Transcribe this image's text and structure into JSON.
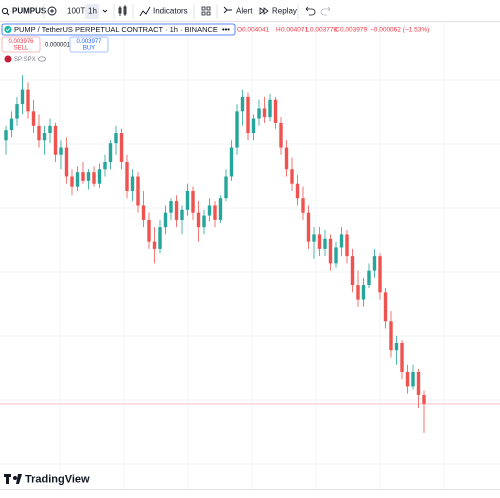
{
  "toolbar": {
    "symbol": "PUMPUS",
    "quantity": "100T",
    "interval": "1h",
    "indicators": "Indicators",
    "alert": "Alert",
    "replay": "Replay"
  },
  "legend": {
    "title": "PUMP / TetherUS PERPETUAL CONTRACT · 1h · BINANCE",
    "o_label": "O",
    "o": "0.004041",
    "h_label": "H",
    "h": "0.004071",
    "l_label": "L",
    "l": "0.003778",
    "c_label": "C",
    "c": "0.003979",
    "change": "−0.000062 (−1.53%)",
    "sell_price": "0.003976",
    "sell": "SELL",
    "spread": "0.000001",
    "buy_price": "0.003977",
    "buy": "BUY",
    "compare": "SP:SPX"
  },
  "footer": {
    "brand": "TradingView"
  },
  "chart_data": {
    "type": "candlestick",
    "up_color": "#26a69a",
    "down_color": "#ef5350",
    "price_line_color": "#f7b9be",
    "ylim": [
      0.00373,
      0.00632
    ],
    "open": [
      0.0058,
      0.00587,
      0.00595,
      0.00605,
      0.00615,
      0.006,
      0.0059,
      0.0058,
      0.00585,
      0.0059,
      0.0057,
      0.00575,
      0.00555,
      0.00548,
      0.00558,
      0.00552,
      0.00558,
      0.0055,
      0.0056,
      0.00565,
      0.00578,
      0.00585,
      0.00565,
      0.00545,
      0.00555,
      0.00535,
      0.00525,
      0.0051,
      0.00505,
      0.0052,
      0.0053,
      0.00538,
      0.00525,
      0.00532,
      0.00545,
      0.0053,
      0.0052,
      0.00528,
      0.00535,
      0.00525,
      0.0054,
      0.00555,
      0.00575,
      0.006,
      0.0061,
      0.00585,
      0.00595,
      0.00602,
      0.00596,
      0.00608,
      0.00592,
      0.00575,
      0.0056,
      0.0055,
      0.0054,
      0.0053,
      0.0051,
      0.00515,
      0.00505,
      0.00512,
      0.00495,
      0.00506,
      0.00515,
      0.005,
      0.0048,
      0.0047,
      0.0048,
      0.0049,
      0.005,
      0.00475,
      0.00455,
      0.00435,
      0.0044,
      0.0042,
      0.0041,
      0.0042,
      0.004041
    ],
    "high": [
      0.0059,
      0.006,
      0.0061,
      0.00625,
      0.0062,
      0.00608,
      0.00598,
      0.0059,
      0.00595,
      0.00592,
      0.0058,
      0.00582,
      0.0056,
      0.00562,
      0.00565,
      0.0056,
      0.00562,
      0.00564,
      0.0057,
      0.0058,
      0.0059,
      0.00588,
      0.0057,
      0.0056,
      0.00558,
      0.00545,
      0.0053,
      0.0052,
      0.00525,
      0.00535,
      0.0054,
      0.00542,
      0.00535,
      0.0055,
      0.00548,
      0.00538,
      0.00532,
      0.0054,
      0.00538,
      0.00542,
      0.0056,
      0.0058,
      0.00605,
      0.00615,
      0.00613,
      0.00598,
      0.00608,
      0.0061,
      0.00612,
      0.0061,
      0.00596,
      0.0058,
      0.00568,
      0.00556,
      0.00548,
      0.00535,
      0.0052,
      0.0052,
      0.00518,
      0.00515,
      0.0051,
      0.0052,
      0.00518,
      0.00505,
      0.0049,
      0.00485,
      0.00495,
      0.00505,
      0.00502,
      0.00478,
      0.00462,
      0.00445,
      0.00442,
      0.00425,
      0.00425,
      0.00422,
      0.004071
    ],
    "low": [
      0.0057,
      0.00582,
      0.0059,
      0.00598,
      0.00595,
      0.00585,
      0.00575,
      0.0057,
      0.00578,
      0.00565,
      0.0056,
      0.0055,
      0.00542,
      0.00545,
      0.0055,
      0.00546,
      0.00548,
      0.00547,
      0.00555,
      0.0056,
      0.0057,
      0.0056,
      0.0054,
      0.00538,
      0.0053,
      0.0052,
      0.00505,
      0.00495,
      0.00502,
      0.00515,
      0.00525,
      0.0052,
      0.00515,
      0.00528,
      0.00525,
      0.0051,
      0.00515,
      0.00524,
      0.0052,
      0.00523,
      0.00538,
      0.00552,
      0.0057,
      0.0059,
      0.0058,
      0.0058,
      0.0059,
      0.00592,
      0.00593,
      0.00588,
      0.0057,
      0.00555,
      0.00545,
      0.00535,
      0.00525,
      0.00505,
      0.00498,
      0.005,
      0.005,
      0.0049,
      0.00492,
      0.005,
      0.00495,
      0.00475,
      0.00465,
      0.00465,
      0.00478,
      0.00485,
      0.0047,
      0.0045,
      0.0043,
      0.00425,
      0.00415,
      0.00405,
      0.00408,
      0.00395,
      0.003778
    ],
    "close": [
      0.00587,
      0.00595,
      0.00605,
      0.00615,
      0.006,
      0.0059,
      0.0058,
      0.00585,
      0.0059,
      0.0057,
      0.00575,
      0.00555,
      0.00548,
      0.00558,
      0.00552,
      0.00558,
      0.0055,
      0.0056,
      0.00565,
      0.00578,
      0.00585,
      0.00565,
      0.00545,
      0.00555,
      0.00535,
      0.00525,
      0.0051,
      0.00505,
      0.0052,
      0.0053,
      0.00538,
      0.00525,
      0.00532,
      0.00545,
      0.0053,
      0.0052,
      0.00528,
      0.00535,
      0.00525,
      0.0054,
      0.00555,
      0.00575,
      0.006,
      0.0061,
      0.00585,
      0.00595,
      0.00602,
      0.00596,
      0.00608,
      0.00592,
      0.00575,
      0.0056,
      0.0055,
      0.0054,
      0.0053,
      0.0051,
      0.00515,
      0.00505,
      0.00512,
      0.00495,
      0.00506,
      0.00515,
      0.005,
      0.0048,
      0.0047,
      0.0048,
      0.0049,
      0.005,
      0.00475,
      0.00455,
      0.00435,
      0.0044,
      0.0042,
      0.0041,
      0.0042,
      0.004041,
      0.003979
    ]
  }
}
